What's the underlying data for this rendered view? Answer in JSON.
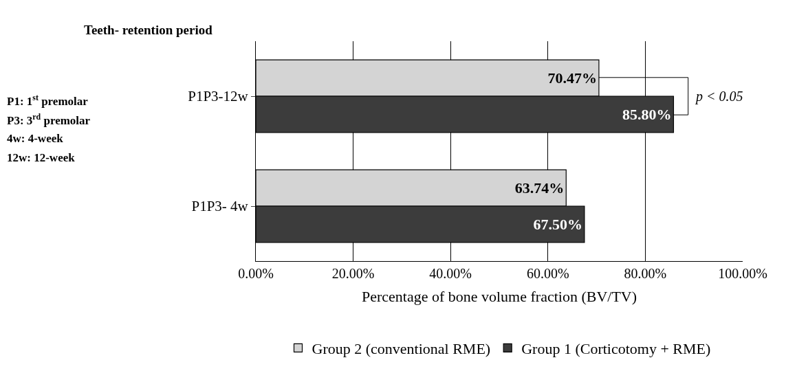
{
  "chart_data": {
    "type": "bar",
    "orientation": "horizontal",
    "ylabel": "Teeth- retention period",
    "xlabel": "Percentage of bone volume fraction (BV/TV)",
    "categories": [
      "P1P3-12w",
      "P1P3- 4w"
    ],
    "series": [
      {
        "name": "Group 2 (conventional RME)",
        "color": "#d4d4d4",
        "values": [
          70.47,
          63.74
        ],
        "value_labels": [
          "70.47%",
          "63.74%"
        ]
      },
      {
        "name": "Group 1 (Corticotomy + RME)",
        "color": "#3c3c3c",
        "values": [
          85.8,
          67.5
        ],
        "value_labels": [
          "85.80%",
          "67.50%"
        ]
      }
    ],
    "xlim": [
      0,
      100
    ],
    "xticks": [
      {
        "value": 0,
        "label": "0.00%"
      },
      {
        "value": 20,
        "label": "20.00%"
      },
      {
        "value": 40,
        "label": "40.00%"
      },
      {
        "value": 60,
        "label": "60.00%"
      },
      {
        "value": 80,
        "label": "80.00%"
      },
      {
        "value": 100,
        "label": "100.00%"
      }
    ],
    "grid": "x",
    "legend": "bottom",
    "annotations": [
      "P1: 1$^{st}$ premolar",
      "P3: 3$^{rd}$ premolar",
      "4w: 4-week",
      "12w: 12-week",
      "p < 0.05"
    ]
  }
}
